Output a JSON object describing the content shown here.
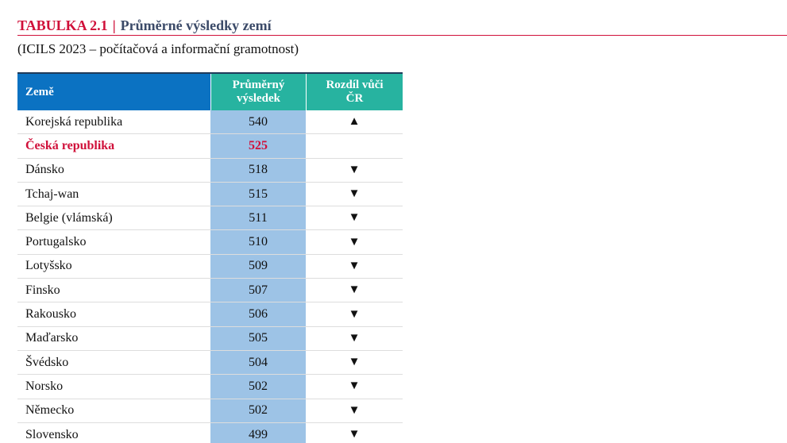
{
  "header": {
    "label": "TABULKA 2.1",
    "separator": "|",
    "title": "Průměrné výsledky zemí",
    "subtitle": "(ICILS 2023 – počítačová a informační gramotnost)"
  },
  "table": {
    "columns": [
      "Země",
      "Průměrný výsledek",
      "Rozdíl vůči ČR"
    ],
    "rows": [
      {
        "country": "Korejská republika",
        "score": 540,
        "diff": "▲"
      },
      {
        "country": "Česká republika",
        "score": 525,
        "highlight": true
      },
      {
        "country": "Dánsko",
        "score": 518,
        "diff": "▼"
      },
      {
        "country": "Tchaj-wan",
        "score": 515,
        "diff": "▼"
      },
      {
        "country": "Belgie (vlámská)",
        "score": 511,
        "diff": "▼"
      },
      {
        "country": "Portugalsko",
        "score": 510,
        "diff": "▼"
      },
      {
        "country": "Lotyšsko",
        "score": 509,
        "diff": "▼"
      },
      {
        "country": "Finsko",
        "score": 507,
        "diff": "▼"
      },
      {
        "country": "Rakousko",
        "score": 506,
        "diff": "▼"
      },
      {
        "country": "Maďarsko",
        "score": 505,
        "diff": "▼"
      },
      {
        "country": "Švédsko",
        "score": 504,
        "diff": "▼"
      },
      {
        "country": "Norsko",
        "score": 502,
        "diff": "▼"
      },
      {
        "country": "Německo",
        "score": 502,
        "diff": "▼"
      },
      {
        "country": "Slovensko",
        "score": 499,
        "diff": "▼"
      }
    ]
  }
}
